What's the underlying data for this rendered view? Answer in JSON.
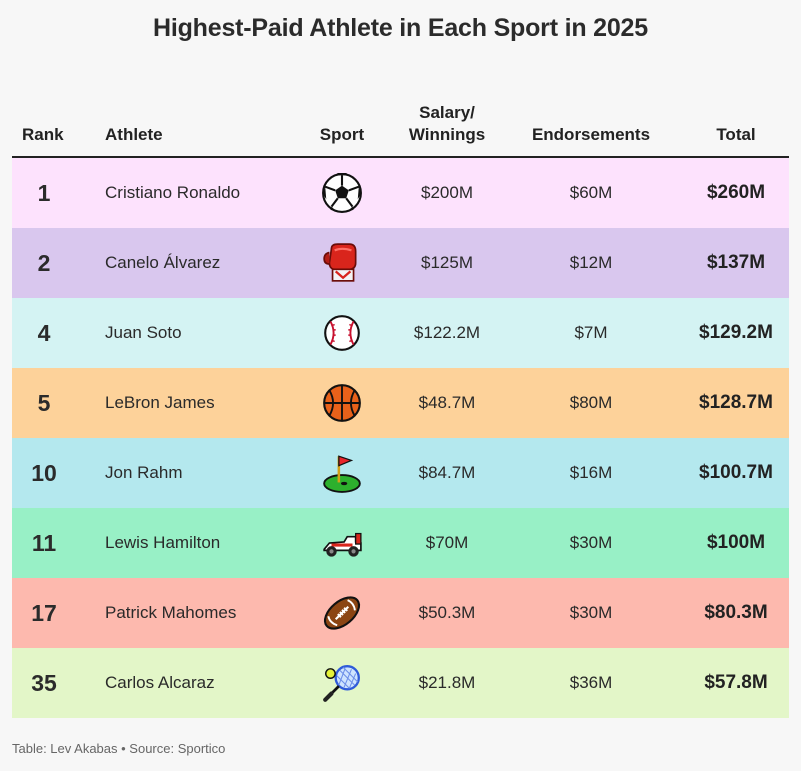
{
  "title": "Highest-Paid Athlete in Each Sport in 2025",
  "headers": {
    "rank": "Rank",
    "athlete": "Athlete",
    "sport": "Sport",
    "salary": "Salary/\nWinnings",
    "endorsements": "Endorsements",
    "total": "Total"
  },
  "rows": [
    {
      "rank": "1",
      "athlete": "Cristiano Ronaldo",
      "sport_icon": "soccer-ball-icon",
      "salary": "$200M",
      "endorsements": "$60M",
      "total": "$260M",
      "color": "#fde2fd"
    },
    {
      "rank": "2",
      "athlete": "Canelo Álvarez",
      "sport_icon": "boxing-glove-icon",
      "salary": "$125M",
      "endorsements": "$12M",
      "total": "$137M",
      "color": "#d9c7ee"
    },
    {
      "rank": "4",
      "athlete": "Juan Soto",
      "sport_icon": "baseball-icon",
      "salary": "$122.2M",
      "endorsements": "$7M",
      "total": "$129.2M",
      "color": "#d4f3f3"
    },
    {
      "rank": "5",
      "athlete": "LeBron James",
      "sport_icon": "basketball-icon",
      "salary": "$48.7M",
      "endorsements": "$80M",
      "total": "$128.7M",
      "color": "#fdd29a"
    },
    {
      "rank": "10",
      "athlete": "Jon Rahm",
      "sport_icon": "golf-flag-icon",
      "salary": "$84.7M",
      "endorsements": "$16M",
      "total": "$100.7M",
      "color": "#b4e8ee"
    },
    {
      "rank": "11",
      "athlete": "Lewis Hamilton",
      "sport_icon": "racing-car-icon",
      "salary": "$70M",
      "endorsements": "$30M",
      "total": "$100M",
      "color": "#98f0c6"
    },
    {
      "rank": "17",
      "athlete": "Patrick Mahomes",
      "sport_icon": "american-football-icon",
      "salary": "$50.3M",
      "endorsements": "$30M",
      "total": "$80.3M",
      "color": "#fdb9ae"
    },
    {
      "rank": "35",
      "athlete": "Carlos Alcaraz",
      "sport_icon": "tennis-racket-icon",
      "salary": "$21.8M",
      "endorsements": "$36M",
      "total": "$57.8M",
      "color": "#e3f6c8"
    }
  ],
  "footer": "Table: Lev Akabas • Source: Sportico",
  "chart_data": {
    "type": "table",
    "title": "Highest-Paid Athlete in Each Sport in 2025",
    "columns": [
      "Rank",
      "Athlete",
      "Sport",
      "Salary/Winnings",
      "Endorsements",
      "Total"
    ],
    "rows": [
      [
        1,
        "Cristiano Ronaldo",
        "soccer",
        200,
        60,
        260
      ],
      [
        2,
        "Canelo Álvarez",
        "boxing",
        125,
        12,
        137
      ],
      [
        4,
        "Juan Soto",
        "baseball",
        122.2,
        7,
        129.2
      ],
      [
        5,
        "LeBron James",
        "basketball",
        48.7,
        80,
        128.7
      ],
      [
        10,
        "Jon Rahm",
        "golf",
        84.7,
        16,
        100.7
      ],
      [
        11,
        "Lewis Hamilton",
        "auto racing",
        70,
        30,
        100
      ],
      [
        17,
        "Patrick Mahomes",
        "american football",
        50.3,
        30,
        80.3
      ],
      [
        35,
        "Carlos Alcaraz",
        "tennis",
        21.8,
        36,
        57.8
      ]
    ]
  }
}
